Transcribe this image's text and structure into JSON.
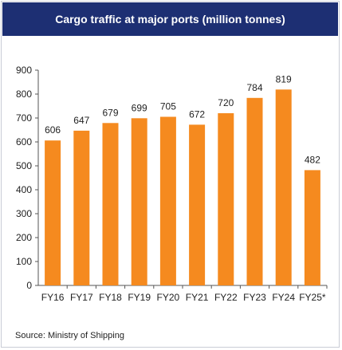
{
  "chart_data": {
    "type": "bar",
    "title": "Cargo traffic at major ports (million tonnes)",
    "categories": [
      "FY16",
      "FY17",
      "FY18",
      "FY19",
      "FY20",
      "FY21",
      "FY22",
      "FY23",
      "FY24",
      "FY25*"
    ],
    "values": [
      606,
      647,
      679,
      699,
      705,
      672,
      720,
      784,
      819,
      482
    ],
    "ylim": [
      0,
      900
    ],
    "yticks": [
      0,
      100,
      200,
      300,
      400,
      500,
      600,
      700,
      800,
      900
    ],
    "grid": false,
    "legend": "none",
    "bar_color": "#f58a1f",
    "source": "Source: Ministry of Shipping"
  },
  "colors": {
    "header_bg": "#1d2f73",
    "bar": "#f58a1f"
  }
}
